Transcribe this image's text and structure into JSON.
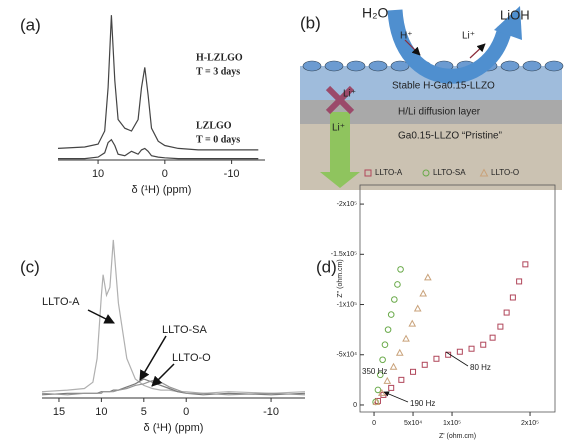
{
  "chart_data": [
    {
      "type": "line",
      "label": "(a)",
      "xlabel": "δ (¹H) (ppm)",
      "xlim": [
        16,
        -15
      ],
      "ylim": [
        0,
        105
      ],
      "xticks": [
        10,
        0,
        -10
      ],
      "x": [
        16,
        12,
        10,
        9,
        8.5,
        8,
        7.5,
        7,
        6,
        5,
        4,
        3.5,
        3,
        2.5,
        2,
        1,
        0,
        -2,
        -5,
        -10,
        -14
      ],
      "series": [
        {
          "name": "H-LZLGO",
          "note": "T = 3 days",
          "color": "#444444",
          "values": [
            8,
            9,
            11,
            20,
            50,
            100,
            55,
            28,
            22,
            20,
            28,
            50,
            64,
            45,
            22,
            13,
            10,
            8,
            7,
            7,
            7
          ]
        },
        {
          "name": "LZLGO",
          "note": "T = 0 days",
          "color": "#444444",
          "values": [
            1,
            1,
            2,
            5,
            12,
            14,
            10,
            4,
            3,
            6,
            4,
            7,
            8,
            6,
            3,
            2,
            1.5,
            1,
            1,
            1,
            1
          ]
        }
      ]
    },
    {
      "type": "line",
      "label": "(c)",
      "xlabel": "δ (¹H) (ppm)",
      "xlim": [
        17,
        -14
      ],
      "ylim": [
        0,
        105
      ],
      "xticks": [
        15,
        10,
        5,
        0,
        -10
      ],
      "x": [
        17,
        14,
        12,
        11,
        10.5,
        10,
        9.8,
        9.4,
        9,
        8.6,
        8,
        7,
        6,
        5,
        4,
        3,
        2,
        1,
        0,
        -2,
        -5,
        -10,
        -14
      ],
      "series": [
        {
          "name": "LLTO-A",
          "color": "#b0b0b0",
          "values": [
            4,
            5,
            6,
            10,
            25,
            65,
            78,
            65,
            70,
            100,
            60,
            25,
            12,
            8,
            6,
            5,
            5,
            4,
            4,
            3,
            4,
            3,
            4
          ]
        },
        {
          "name": "LLTO-SA",
          "color": "#7a7a7a",
          "values": [
            2,
            3,
            3,
            3,
            3,
            4,
            4,
            4,
            4,
            5,
            5,
            7,
            9,
            12,
            10,
            8,
            6,
            4,
            3,
            2,
            3,
            2,
            3
          ]
        },
        {
          "name": "LLTO-O",
          "color": "#969696",
          "values": [
            3,
            2,
            3,
            3,
            3,
            3,
            4,
            4,
            4,
            4,
            5,
            6,
            8,
            9,
            11,
            10,
            7,
            5,
            3,
            3,
            2,
            3,
            2
          ]
        }
      ]
    },
    {
      "type": "scatter",
      "label": "(d)",
      "xlabel": "Z' (ohm.cm)",
      "ylabel": "Z'' (ohm.cm)",
      "xlim": [
        -18000,
        232000
      ],
      "ylim": [
        7000,
        -219000
      ],
      "legend": "top",
      "xticks": [
        0,
        {
          "value": 50000,
          "label": "5x10⁴"
        },
        {
          "value": 100000,
          "label": "1x10⁵"
        },
        {
          "value": 200000,
          "label": "2x10⁵"
        }
      ],
      "yticks": [
        0,
        {
          "value": -50000,
          "label": "-5x10⁴"
        },
        {
          "value": -100000,
          "label": "-1x10⁵"
        },
        {
          "value": -150000,
          "label": "-1.5x10⁵"
        },
        {
          "value": -200000,
          "label": "-2x10⁵"
        }
      ],
      "series": [
        {
          "name": "LLTO-A",
          "color": "#b0465a",
          "marker": "square",
          "x": [
            5000,
            12000,
            22000,
            35000,
            50000,
            65000,
            80000,
            95000,
            110000,
            125000,
            140000,
            152000,
            162000,
            170000,
            178000,
            186000,
            194000
          ],
          "y": [
            -4000,
            -10000,
            -17000,
            -25000,
            -33000,
            -40000,
            -46000,
            -50000,
            -53000,
            -56000,
            -60000,
            -67000,
            -78000,
            -92000,
            -107000,
            -123000,
            -140000
          ]
        },
        {
          "name": "LLTO-SA",
          "color": "#6aaa4a",
          "marker": "circle",
          "x": [
            2000,
            5000,
            8000,
            11000,
            14000,
            18000,
            22000,
            26000,
            30000,
            34000
          ],
          "y": [
            -3000,
            -15000,
            -30000,
            -45000,
            -60000,
            -75000,
            -90000,
            -105000,
            -120000,
            -135000
          ]
        },
        {
          "name": "LLTO-O",
          "color": "#c9a27a",
          "marker": "triangle",
          "x": [
            3000,
            10000,
            17000,
            25000,
            33000,
            41000,
            49000,
            56000,
            63000,
            69000
          ],
          "y": [
            -3000,
            -12000,
            -24000,
            -38000,
            -52000,
            -66000,
            -81000,
            -96000,
            -111000,
            -127000
          ]
        }
      ],
      "annotations": [
        "350 Hz",
        "190 Hz",
        "80 Hz"
      ]
    }
  ],
  "diagram": {
    "label": "(b)",
    "inflow": "H₂O",
    "outflow": "LiOH",
    "proton": "H⁺",
    "lithium_out": "Li⁺",
    "blocked": "Li⁺",
    "diffusing": "Li⁺",
    "layers": [
      "Stable H-Ga0.15-LLZO",
      "H/Li diffusion layer",
      "Ga0.15-LLZO “Pristine”"
    ]
  }
}
